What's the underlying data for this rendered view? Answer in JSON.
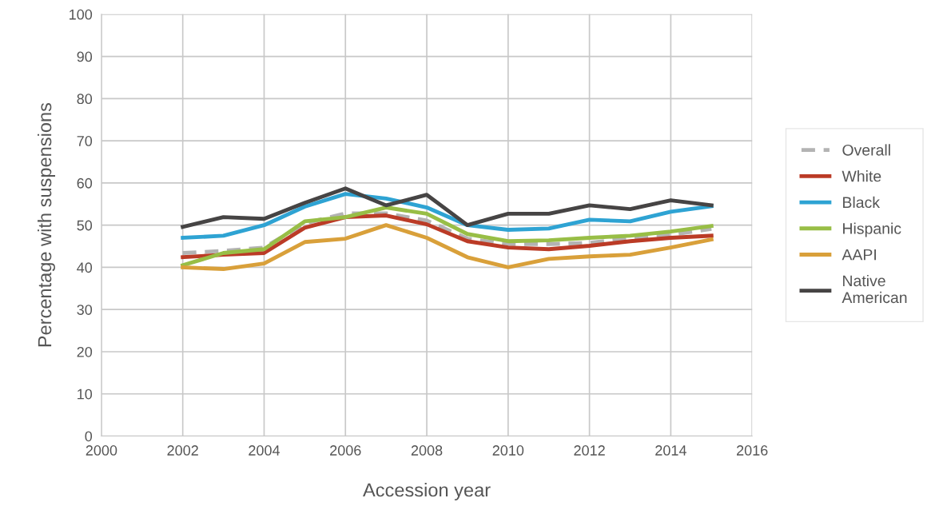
{
  "chart_data": {
    "type": "line",
    "xlabel": "Accession year",
    "ylabel": "Percentage with suspensions",
    "x": [
      2002,
      2003,
      2004,
      2005,
      2006,
      2007,
      2008,
      2009,
      2010,
      2011,
      2012,
      2013,
      2014,
      2015
    ],
    "xlim": [
      2000,
      2016
    ],
    "xticks": [
      2000,
      2002,
      2004,
      2006,
      2008,
      2010,
      2012,
      2014,
      2016
    ],
    "ylim": [
      0,
      100
    ],
    "yticks": [
      0,
      10,
      20,
      30,
      40,
      50,
      60,
      70,
      80,
      90,
      100
    ],
    "grid": true,
    "legend": "right",
    "marker": "none",
    "series": [
      {
        "name": "Overall",
        "color": "#b3b3b3",
        "line_style": "dashed",
        "values": [
          43.4,
          43.9,
          44.7,
          50.4,
          52.8,
          52.8,
          51.1,
          46.8,
          45.5,
          45.5,
          45.8,
          47.0,
          47.7,
          49.1
        ]
      },
      {
        "name": "White",
        "color": "#bb3b26",
        "values": [
          42.4,
          43.0,
          43.4,
          49.4,
          51.9,
          52.3,
          50.2,
          46.2,
          44.7,
          44.3,
          45.1,
          46.2,
          47.0,
          47.5
        ]
      },
      {
        "name": "Black",
        "color": "#2ea3d3",
        "values": [
          47.0,
          47.5,
          50.0,
          54.4,
          57.4,
          56.3,
          54.2,
          50.0,
          48.9,
          49.2,
          51.3,
          50.9,
          53.2,
          54.5
        ]
      },
      {
        "name": "Hispanic",
        "color": "#98be46",
        "values": [
          40.5,
          43.4,
          44.3,
          50.9,
          51.9,
          54.2,
          52.7,
          47.9,
          46.2,
          46.4,
          47.0,
          47.5,
          48.5,
          49.8
        ]
      },
      {
        "name": "AAPI",
        "color": "#d9a03a",
        "values": [
          40.0,
          39.6,
          40.9,
          46.0,
          46.8,
          50.0,
          47.0,
          42.4,
          40.0,
          42.0,
          42.6,
          43.0,
          44.7,
          46.6
        ]
      },
      {
        "name": "Native\nAmerican",
        "color": "#464444",
        "values": [
          49.6,
          51.9,
          51.5,
          55.3,
          58.7,
          54.7,
          57.2,
          50.0,
          52.7,
          52.7,
          54.7,
          53.8,
          55.9,
          54.7
        ]
      }
    ]
  }
}
